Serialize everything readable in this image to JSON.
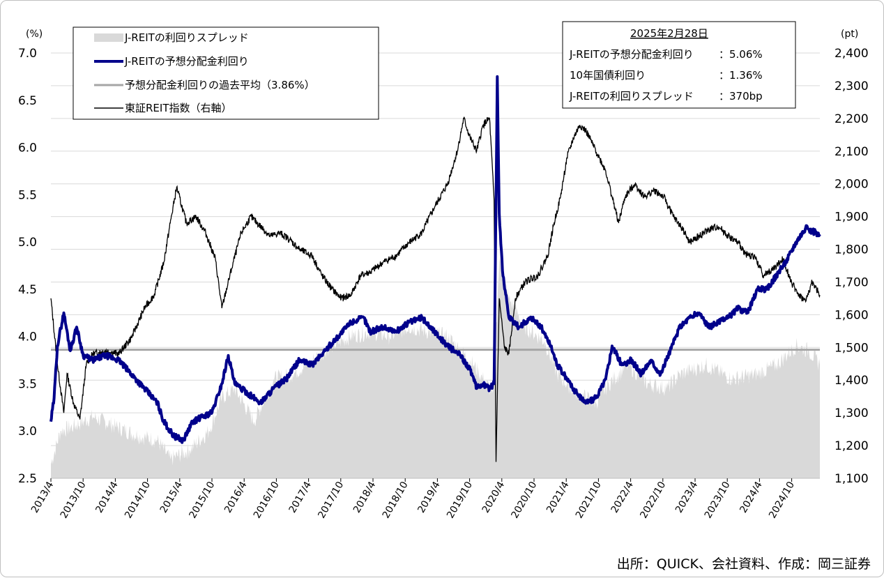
{
  "chart_data": {
    "type": "line",
    "title": "",
    "left_axis": {
      "unit": "(%)",
      "min": 2.5,
      "max": 7.0,
      "ticks": [
        "7.0",
        "6.5",
        "6.0",
        "5.5",
        "5.0",
        "4.5",
        "4.0",
        "3.5",
        "3.0",
        "2.5"
      ]
    },
    "right_axis": {
      "unit": "(pt)",
      "min": 1100,
      "max": 2400,
      "ticks": [
        "2,400",
        "2,300",
        "2,200",
        "2,100",
        "2,000",
        "1,900",
        "1,800",
        "1,700",
        "1,600",
        "1,500",
        "1,400",
        "1,300",
        "1,200",
        "1,100"
      ]
    },
    "x_ticks": [
      "2013/4",
      "2013/10",
      "2014/4",
      "2014/10",
      "2015/4",
      "2015/10",
      "2016/4",
      "2016/10",
      "2017/4",
      "2017/10",
      "2018/4",
      "2018/10",
      "2019/4",
      "2019/10",
      "2020/4",
      "2020/10",
      "2021/4",
      "2021/10",
      "2022/4",
      "2022/10",
      "2023/4",
      "2023/10",
      "2024/4",
      "2024/10"
    ],
    "x_range": [
      2013.25,
      2025.17
    ],
    "legend": [
      {
        "label": "J-REITの利回りスプレッド",
        "style": "area",
        "color": "#d9d9d9"
      },
      {
        "label": "J-REITの予想分配金利回り",
        "style": "thick-line",
        "color": "#00008b"
      },
      {
        "label": "予想分配金利回りの過去平均（3.86%）",
        "style": "line",
        "color": "#a6a6a6"
      },
      {
        "label": "東証REIT指数（右軸）",
        "style": "thin-line",
        "color": "#000000"
      }
    ],
    "info_box": {
      "date": "2025年2月28日",
      "rows": [
        {
          "label": "J-REITの予想分配金利回り",
          "value": "：5.06%"
        },
        {
          "label": "10年国債利回り",
          "value": "：1.36%"
        },
        {
          "label": "J-REITの利回りスプレッド",
          "value": "：370bp"
        }
      ]
    },
    "average_yield": 3.86,
    "series": [
      {
        "name": "J-REITの利回りスプレッド",
        "axis": "left",
        "points": [
          [
            2013.25,
            2.65
          ],
          [
            2013.4,
            3.0
          ],
          [
            2013.6,
            3.05
          ],
          [
            2013.9,
            3.15
          ],
          [
            2014.25,
            3.05
          ],
          [
            2014.6,
            2.95
          ],
          [
            2014.9,
            2.9
          ],
          [
            2015.1,
            2.7
          ],
          [
            2015.4,
            2.8
          ],
          [
            2015.7,
            3.0
          ],
          [
            2015.9,
            3.35
          ],
          [
            2016.1,
            3.45
          ],
          [
            2016.4,
            3.1
          ],
          [
            2016.7,
            3.55
          ],
          [
            2017.0,
            3.6
          ],
          [
            2017.3,
            3.75
          ],
          [
            2017.6,
            3.9
          ],
          [
            2017.9,
            4.0
          ],
          [
            2018.2,
            4.05
          ],
          [
            2018.5,
            4.0
          ],
          [
            2018.8,
            4.1
          ],
          [
            2019.1,
            4.05
          ],
          [
            2019.4,
            4.0
          ],
          [
            2019.6,
            3.85
          ],
          [
            2019.8,
            3.7
          ],
          [
            2020.0,
            3.5
          ],
          [
            2020.1,
            3.4
          ],
          [
            2020.2,
            4.8
          ],
          [
            2020.35,
            4.4
          ],
          [
            2020.6,
            4.1
          ],
          [
            2020.9,
            3.95
          ],
          [
            2021.1,
            3.6
          ],
          [
            2021.4,
            3.4
          ],
          [
            2021.7,
            3.3
          ],
          [
            2021.9,
            3.5
          ],
          [
            2022.2,
            3.7
          ],
          [
            2022.5,
            3.5
          ],
          [
            2022.8,
            3.45
          ],
          [
            2023.0,
            3.6
          ],
          [
            2023.4,
            3.7
          ],
          [
            2023.8,
            3.55
          ],
          [
            2024.2,
            3.6
          ],
          [
            2024.5,
            3.7
          ],
          [
            2024.8,
            3.9
          ],
          [
            2025.0,
            3.85
          ],
          [
            2025.17,
            3.7
          ]
        ]
      },
      {
        "name": "J-REITの予想分配金利回り",
        "axis": "left",
        "points": [
          [
            2013.25,
            3.1
          ],
          [
            2013.3,
            3.35
          ],
          [
            2013.35,
            3.9
          ],
          [
            2013.45,
            4.25
          ],
          [
            2013.55,
            3.85
          ],
          [
            2013.65,
            4.1
          ],
          [
            2013.75,
            3.8
          ],
          [
            2013.9,
            3.75
          ],
          [
            2014.1,
            3.8
          ],
          [
            2014.3,
            3.75
          ],
          [
            2014.5,
            3.6
          ],
          [
            2014.7,
            3.45
          ],
          [
            2014.9,
            3.3
          ],
          [
            2015.0,
            3.1
          ],
          [
            2015.15,
            2.95
          ],
          [
            2015.3,
            2.9
          ],
          [
            2015.45,
            3.1
          ],
          [
            2015.6,
            3.15
          ],
          [
            2015.75,
            3.2
          ],
          [
            2015.9,
            3.5
          ],
          [
            2016.0,
            3.8
          ],
          [
            2016.1,
            3.5
          ],
          [
            2016.3,
            3.4
          ],
          [
            2016.5,
            3.3
          ],
          [
            2016.7,
            3.45
          ],
          [
            2016.9,
            3.55
          ],
          [
            2017.1,
            3.75
          ],
          [
            2017.3,
            3.7
          ],
          [
            2017.5,
            3.85
          ],
          [
            2017.7,
            4.0
          ],
          [
            2017.9,
            4.15
          ],
          [
            2018.1,
            4.2
          ],
          [
            2018.2,
            4.05
          ],
          [
            2018.4,
            4.1
          ],
          [
            2018.6,
            4.05
          ],
          [
            2018.8,
            4.15
          ],
          [
            2019.0,
            4.2
          ],
          [
            2019.2,
            4.05
          ],
          [
            2019.4,
            3.9
          ],
          [
            2019.6,
            3.8
          ],
          [
            2019.75,
            3.65
          ],
          [
            2019.85,
            3.45
          ],
          [
            2019.95,
            3.5
          ],
          [
            2020.05,
            3.45
          ],
          [
            2020.12,
            3.5
          ],
          [
            2020.17,
            6.75
          ],
          [
            2020.2,
            5.3
          ],
          [
            2020.25,
            4.7
          ],
          [
            2020.35,
            4.2
          ],
          [
            2020.5,
            4.1
          ],
          [
            2020.7,
            4.2
          ],
          [
            2020.85,
            4.1
          ],
          [
            2021.0,
            3.9
          ],
          [
            2021.1,
            3.7
          ],
          [
            2021.25,
            3.55
          ],
          [
            2021.4,
            3.4
          ],
          [
            2021.55,
            3.3
          ],
          [
            2021.7,
            3.35
          ],
          [
            2021.85,
            3.55
          ],
          [
            2021.95,
            3.9
          ],
          [
            2022.1,
            3.7
          ],
          [
            2022.25,
            3.75
          ],
          [
            2022.4,
            3.6
          ],
          [
            2022.55,
            3.75
          ],
          [
            2022.7,
            3.6
          ],
          [
            2022.85,
            3.85
          ],
          [
            2023.0,
            4.1
          ],
          [
            2023.15,
            4.2
          ],
          [
            2023.3,
            4.25
          ],
          [
            2023.45,
            4.1
          ],
          [
            2023.6,
            4.15
          ],
          [
            2023.75,
            4.2
          ],
          [
            2023.9,
            4.3
          ],
          [
            2024.05,
            4.25
          ],
          [
            2024.2,
            4.5
          ],
          [
            2024.35,
            4.5
          ],
          [
            2024.5,
            4.65
          ],
          [
            2024.65,
            4.8
          ],
          [
            2024.8,
            5.0
          ],
          [
            2024.95,
            5.15
          ],
          [
            2025.1,
            5.1
          ],
          [
            2025.17,
            5.06
          ]
        ]
      },
      {
        "name": "東証REIT指数（右軸）",
        "axis": "right",
        "points": [
          [
            2013.25,
            1650
          ],
          [
            2013.35,
            1450
          ],
          [
            2013.45,
            1300
          ],
          [
            2013.5,
            1420
          ],
          [
            2013.6,
            1330
          ],
          [
            2013.7,
            1280
          ],
          [
            2013.8,
            1450
          ],
          [
            2013.9,
            1480
          ],
          [
            2014.1,
            1490
          ],
          [
            2014.3,
            1480
          ],
          [
            2014.5,
            1530
          ],
          [
            2014.7,
            1620
          ],
          [
            2014.85,
            1660
          ],
          [
            2015.0,
            1760
          ],
          [
            2015.1,
            1880
          ],
          [
            2015.2,
            1990
          ],
          [
            2015.35,
            1880
          ],
          [
            2015.5,
            1900
          ],
          [
            2015.65,
            1850
          ],
          [
            2015.8,
            1770
          ],
          [
            2015.9,
            1620
          ],
          [
            2016.05,
            1740
          ],
          [
            2016.2,
            1850
          ],
          [
            2016.35,
            1900
          ],
          [
            2016.5,
            1870
          ],
          [
            2016.65,
            1840
          ],
          [
            2016.8,
            1850
          ],
          [
            2016.95,
            1830
          ],
          [
            2017.1,
            1800
          ],
          [
            2017.3,
            1780
          ],
          [
            2017.45,
            1720
          ],
          [
            2017.6,
            1680
          ],
          [
            2017.75,
            1650
          ],
          [
            2017.9,
            1660
          ],
          [
            2018.05,
            1720
          ],
          [
            2018.2,
            1730
          ],
          [
            2018.4,
            1760
          ],
          [
            2018.6,
            1780
          ],
          [
            2018.8,
            1820
          ],
          [
            2019.0,
            1850
          ],
          [
            2019.2,
            1930
          ],
          [
            2019.4,
            2000
          ],
          [
            2019.55,
            2100
          ],
          [
            2019.65,
            2200
          ],
          [
            2019.75,
            2140
          ],
          [
            2019.85,
            2100
          ],
          [
            2019.95,
            2180
          ],
          [
            2020.05,
            2200
          ],
          [
            2020.12,
            1950
          ],
          [
            2020.15,
            1150
          ],
          [
            2020.2,
            1650
          ],
          [
            2020.28,
            1500
          ],
          [
            2020.35,
            1480
          ],
          [
            2020.45,
            1650
          ],
          [
            2020.6,
            1700
          ],
          [
            2020.8,
            1720
          ],
          [
            2020.95,
            1780
          ],
          [
            2021.05,
            1880
          ],
          [
            2021.15,
            1960
          ],
          [
            2021.25,
            2080
          ],
          [
            2021.35,
            2140
          ],
          [
            2021.45,
            2180
          ],
          [
            2021.55,
            2160
          ],
          [
            2021.65,
            2120
          ],
          [
            2021.75,
            2080
          ],
          [
            2021.85,
            2040
          ],
          [
            2021.95,
            1960
          ],
          [
            2022.05,
            1880
          ],
          [
            2022.15,
            1960
          ],
          [
            2022.3,
            2000
          ],
          [
            2022.45,
            1960
          ],
          [
            2022.6,
            1980
          ],
          [
            2022.75,
            1960
          ],
          [
            2022.9,
            1900
          ],
          [
            2023.05,
            1860
          ],
          [
            2023.15,
            1820
          ],
          [
            2023.3,
            1840
          ],
          [
            2023.45,
            1860
          ],
          [
            2023.6,
            1870
          ],
          [
            2023.75,
            1840
          ],
          [
            2023.9,
            1820
          ],
          [
            2024.05,
            1780
          ],
          [
            2024.15,
            1780
          ],
          [
            2024.3,
            1720
          ],
          [
            2024.45,
            1740
          ],
          [
            2024.6,
            1770
          ],
          [
            2024.75,
            1690
          ],
          [
            2024.85,
            1660
          ],
          [
            2024.95,
            1640
          ],
          [
            2025.05,
            1700
          ],
          [
            2025.17,
            1660
          ]
        ]
      }
    ]
  },
  "source": "出所：QUICK、会社資料、作成：岡三証券"
}
